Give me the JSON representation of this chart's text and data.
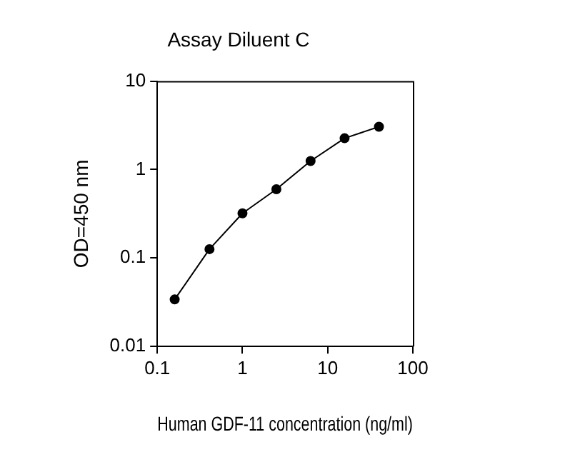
{
  "chart_data": {
    "type": "line",
    "title": "Assay Diluent C",
    "xlabel": "Human GDF-11 concentration (ng/ml)",
    "ylabel": "OD=450 nm",
    "x": [
      0.16,
      0.41,
      1,
      2.5,
      6.3,
      15.8,
      40
    ],
    "series": [
      {
        "color": "#000000",
        "values": [
          0.034,
          0.126,
          0.32,
          0.6,
          1.25,
          2.26,
          3.05
        ]
      }
    ],
    "log": "xy",
    "xlim": [
      0.1,
      100
    ],
    "xticks": [
      0.1,
      1,
      10,
      100
    ],
    "ylim": [
      0.01,
      10
    ],
    "yticks": [
      0.01,
      0.1,
      1,
      10
    ],
    "grid": false,
    "legend": false,
    "marker": "circle",
    "line_style": "solid"
  }
}
